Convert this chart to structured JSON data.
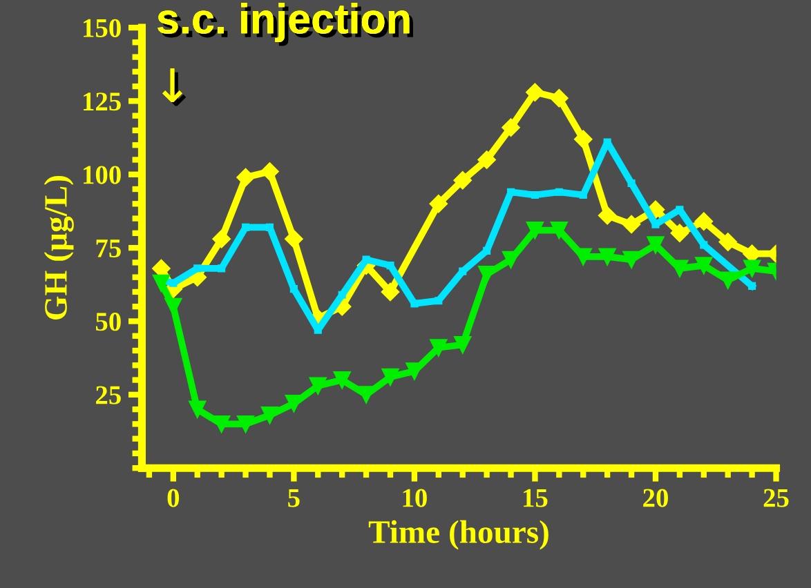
{
  "chart_data": {
    "type": "line",
    "title": "s.c. injection",
    "xlabel": "Time (hours)",
    "ylabel": "GH (µg/L)",
    "annotations": [
      "↓"
    ],
    "xlim": [
      -1.3,
      25
    ],
    "xticks": [
      0,
      5,
      10,
      15,
      20,
      25
    ],
    "ylim": [
      0,
      150
    ],
    "yticks": [
      25,
      50,
      75,
      100,
      125,
      150
    ],
    "grid": false,
    "legend": false,
    "line_style": "solid",
    "series": [
      {
        "color": "#ffff00",
        "marker": "diamond",
        "x": [
          -0.5,
          0,
          1,
          2,
          3,
          4,
          5,
          6,
          7,
          8,
          9,
          11,
          12,
          13,
          14,
          15,
          16,
          17,
          18,
          19,
          20,
          21,
          22,
          23,
          24,
          25
        ],
        "values": [
          68,
          61,
          65,
          78,
          99,
          101,
          78,
          51,
          55,
          69,
          60,
          90,
          98,
          105,
          116,
          128,
          126,
          112,
          86,
          83,
          88,
          80,
          84,
          77,
          73,
          73
        ]
      },
      {
        "color": "#00e5ff",
        "marker": "square",
        "x": [
          -0.5,
          0,
          1,
          2,
          3,
          4,
          5,
          6,
          7,
          8,
          9,
          10,
          11,
          12,
          13,
          14,
          15,
          16,
          17,
          18,
          19,
          20,
          21,
          22,
          24
        ],
        "values": [
          64,
          63,
          68,
          68,
          82,
          82,
          61,
          47,
          59,
          71,
          69,
          56,
          57,
          67,
          74,
          94,
          93,
          94,
          93,
          111,
          97,
          83,
          88,
          76,
          62
        ]
      },
      {
        "color": "#00ee00",
        "marker": "triangle",
        "x": [
          -0.5,
          0,
          1,
          2,
          3,
          4,
          5,
          6,
          7,
          8,
          9,
          10,
          11,
          12,
          13,
          14,
          15,
          16,
          17,
          18,
          19,
          20,
          21,
          22,
          23,
          24,
          25
        ],
        "values": [
          63,
          55,
          20,
          15,
          15,
          18,
          22,
          28,
          30,
          25,
          31,
          33,
          41,
          42,
          66,
          71,
          81,
          81,
          72,
          72,
          71,
          76,
          68,
          69,
          64,
          68,
          67
        ]
      }
    ]
  }
}
